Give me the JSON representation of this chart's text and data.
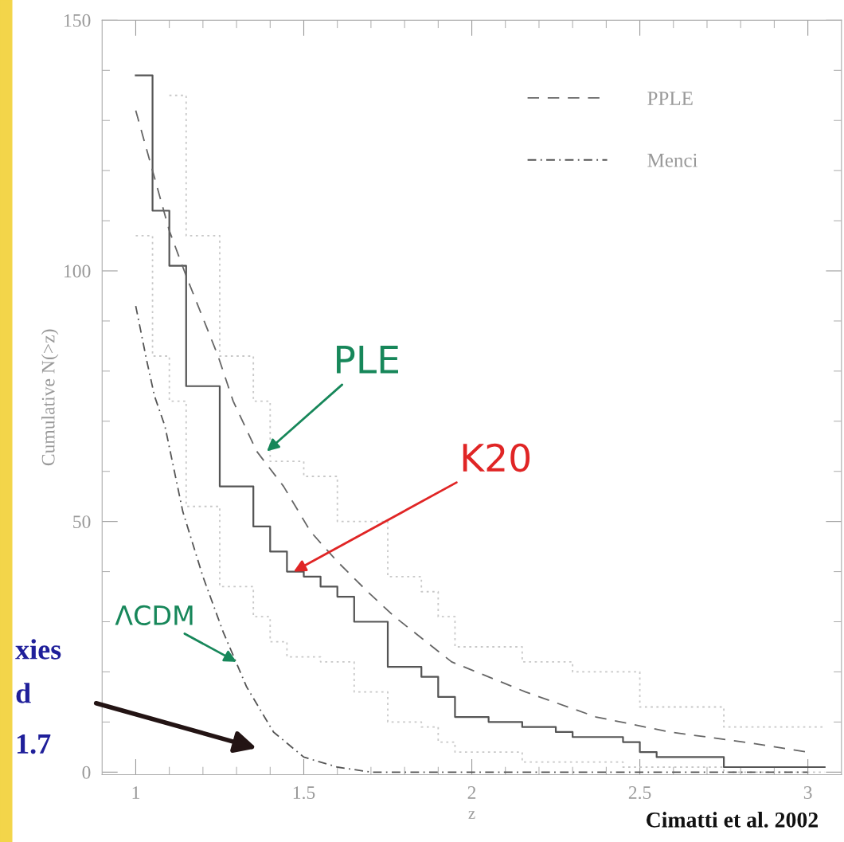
{
  "chart_data": {
    "type": "line",
    "xlabel": "z",
    "ylabel": "Cumulative N(>z)",
    "xlim": [
      0.9,
      3.1
    ],
    "ylim": [
      -0.5,
      150
    ],
    "xticks": [
      1,
      1.5,
      2,
      2.5,
      3
    ],
    "yticks": [
      0,
      50,
      100,
      150
    ],
    "grid": false,
    "legend": "top right",
    "series": [
      {
        "type": "step",
        "color": "#c8c8c8",
        "line_style": "dotted",
        "x": [
          1.1,
          1.15,
          1.25,
          1.35,
          1.4,
          1.5,
          1.6,
          1.75,
          1.85,
          1.9,
          1.95,
          2.15,
          2.3,
          2.5,
          2.75,
          3.05
        ],
        "values": [
          135,
          107,
          83,
          74,
          62,
          59,
          50,
          39,
          36,
          31,
          25,
          22,
          20,
          13,
          9,
          9
        ]
      },
      {
        "type": "step",
        "color": "#c8c8c8",
        "line_style": "dotted",
        "x": [
          1.0,
          1.05,
          1.1,
          1.15,
          1.25,
          1.35,
          1.4,
          1.45,
          1.55,
          1.65,
          1.75,
          1.85,
          1.9,
          1.95,
          2.15,
          2.45,
          2.75,
          3.05
        ],
        "values": [
          107,
          83,
          74,
          53,
          37,
          31,
          26,
          23,
          22,
          16,
          10,
          9,
          6,
          4,
          2,
          1,
          0,
          0
        ]
      },
      {
        "type": "step",
        "color": "#555555",
        "line_style": "solid",
        "x": [
          1.0,
          1.05,
          1.1,
          1.15,
          1.25,
          1.35,
          1.4,
          1.45,
          1.5,
          1.55,
          1.6,
          1.65,
          1.75,
          1.85,
          1.9,
          1.95,
          2.05,
          2.15,
          2.25,
          2.3,
          2.45,
          2.5,
          2.55,
          2.75,
          3.05
        ],
        "values": [
          139,
          112,
          101,
          77,
          57,
          49,
          44,
          40,
          39,
          37,
          35,
          30,
          21,
          19,
          15,
          11,
          10,
          9,
          8,
          7,
          6,
          4,
          3,
          1,
          1
        ]
      },
      {
        "name": "PPLE",
        "color": "#666666",
        "line_style": "dashed",
        "x": [
          1.0,
          1.05,
          1.1,
          1.15,
          1.245,
          1.29,
          1.36,
          1.44,
          1.52,
          1.6,
          1.69,
          1.77,
          1.94,
          2.16,
          2.37,
          2.59,
          2.81,
          3.0
        ],
        "values": [
          132,
          120,
          108,
          99,
          83,
          74,
          64,
          57,
          48,
          42,
          36,
          31,
          22,
          16,
          11,
          8,
          6,
          4
        ]
      },
      {
        "name": "Menci",
        "color": "#555555",
        "line_style": "dashdot",
        "x": [
          1.0,
          1.033,
          1.056,
          1.087,
          1.14,
          1.2,
          1.26,
          1.33,
          1.41,
          1.5,
          1.6,
          1.7,
          3.0
        ],
        "values": [
          93,
          82,
          75,
          69,
          52,
          39,
          28,
          17,
          8,
          3,
          1,
          0,
          0
        ]
      }
    ],
    "annotations": [
      {
        "text": "PLE",
        "x": 1.39,
        "y": 64
      },
      {
        "text": "K20",
        "x": 1.47,
        "y": 40
      },
      {
        "text": "ΛCDM",
        "x": 1.3,
        "y": 22
      },
      "xies",
      "d",
      "1.7",
      "Cimatti et al. 2002"
    ]
  }
}
